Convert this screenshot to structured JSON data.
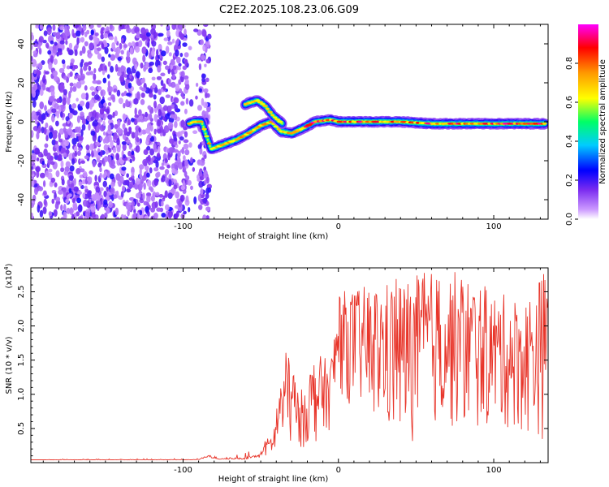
{
  "title": "C2E2.2025.108.23.06.G09",
  "chart_data": [
    {
      "type": "heatmap",
      "xlabel": "Height of straight line (km)",
      "ylabel": "Frequency (Hz)",
      "xlim": [
        -198,
        135
      ],
      "ylim": [
        -50,
        50
      ],
      "xticks": [
        -100,
        0,
        100
      ],
      "yticks": [
        -40,
        -20,
        0,
        20,
        40
      ],
      "colorbar": {
        "label": "Normalized spectral amplitude",
        "range": [
          0.0,
          1.0
        ],
        "ticks": [
          "0.0",
          "0.2",
          "0.4",
          "0.6",
          "0.8"
        ],
        "tick_values": [
          0.0,
          0.2,
          0.4,
          0.6,
          0.8
        ],
        "colors": [
          "#ffffff",
          "#cc99ff",
          "#7b2cf0",
          "#0000ff",
          "#00ccff",
          "#00ff66",
          "#ffff00",
          "#ff9900",
          "#ff0000",
          "#ff00ff"
        ]
      },
      "noise_region_x": [
        -198,
        -83
      ],
      "gap_x": [
        -97,
        -90
      ],
      "signal_track": [
        {
          "x": -96,
          "y": -1
        },
        {
          "x": -93,
          "y": 0
        },
        {
          "x": -88,
          "y": 0
        },
        {
          "x": -82,
          "y": -14
        },
        {
          "x": -75,
          "y": -12
        },
        {
          "x": -65,
          "y": -9
        },
        {
          "x": -58,
          "y": -6
        },
        {
          "x": -50,
          "y": -2
        },
        {
          "x": -43,
          "y": 0
        },
        {
          "x": -37,
          "y": -5
        },
        {
          "x": -30,
          "y": -6
        },
        {
          "x": -22,
          "y": -3
        },
        {
          "x": -15,
          "y": 0
        },
        {
          "x": -5,
          "y": 1
        },
        {
          "x": 0,
          "y": 0
        },
        {
          "x": 20,
          "y": 0
        },
        {
          "x": 40,
          "y": 0
        },
        {
          "x": 60,
          "y": -1
        },
        {
          "x": 80,
          "y": -1
        },
        {
          "x": 100,
          "y": -1
        },
        {
          "x": 120,
          "y": -1
        },
        {
          "x": 133,
          "y": -1
        }
      ],
      "branch_track": [
        {
          "x": -60,
          "y": 9
        },
        {
          "x": -52,
          "y": 11
        },
        {
          "x": -47,
          "y": 8
        },
        {
          "x": -42,
          "y": 3
        },
        {
          "x": -36,
          "y": -1
        }
      ]
    },
    {
      "type": "line",
      "xlabel": "Height of straight line (km)",
      "ylabel": "SNR (10 * v/v)",
      "y_multiplier": "(x10^4)",
      "xlim": [
        -198,
        135
      ],
      "ylim": [
        0,
        2.85
      ],
      "xticks": [
        -100,
        0,
        100
      ],
      "yticks": [
        0.5,
        1.0,
        1.5,
        2.0,
        2.5
      ],
      "color": "#e8352a",
      "envelope": [
        {
          "x": -198,
          "baseline": 0.04,
          "max": 0.05
        },
        {
          "x": -90,
          "baseline": 0.04,
          "max": 0.06
        },
        {
          "x": -84,
          "baseline": 0.08,
          "max": 0.18
        },
        {
          "x": -78,
          "baseline": 0.05,
          "max": 0.07
        },
        {
          "x": -60,
          "baseline": 0.05,
          "max": 0.15
        },
        {
          "x": -48,
          "baseline": 0.08,
          "max": 0.3
        },
        {
          "x": -42,
          "baseline": 0.1,
          "max": 0.45
        },
        {
          "x": -38,
          "baseline": 0.15,
          "max": 1.2
        },
        {
          "x": -33,
          "baseline": 0.2,
          "max": 1.7
        },
        {
          "x": -25,
          "baseline": 0.2,
          "max": 1.0
        },
        {
          "x": -15,
          "baseline": 0.25,
          "max": 1.6
        },
        {
          "x": -5,
          "baseline": 0.5,
          "max": 1.5
        },
        {
          "x": 0,
          "baseline": 1.0,
          "max": 2.5
        },
        {
          "x": 20,
          "baseline": 0.6,
          "max": 2.6
        },
        {
          "x": 40,
          "baseline": 0.2,
          "max": 2.7
        },
        {
          "x": 60,
          "baseline": 0.5,
          "max": 2.8
        },
        {
          "x": 80,
          "baseline": 0.4,
          "max": 2.8
        },
        {
          "x": 100,
          "baseline": 0.5,
          "max": 2.5
        },
        {
          "x": 120,
          "baseline": 0.4,
          "max": 2.4
        },
        {
          "x": 133,
          "baseline": 0.3,
          "max": 2.85
        }
      ]
    }
  ]
}
